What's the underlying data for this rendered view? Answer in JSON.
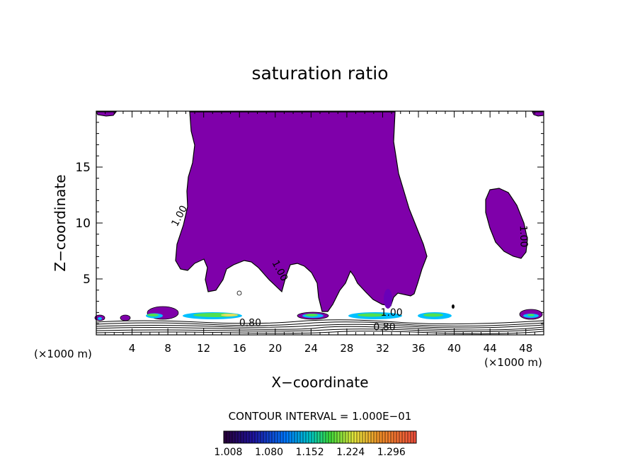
{
  "chart_data": {
    "type": "contour",
    "title": "saturation ratio",
    "xlabel": "X−coordinate",
    "ylabel": "Z−coordinate",
    "x_unit_left": "(×1000 m)",
    "x_unit_right": "(×1000 m)",
    "xlim": [
      0,
      50
    ],
    "ylim": [
      0,
      20
    ],
    "x_ticks": [
      "4",
      "8",
      "12",
      "16",
      "20",
      "24",
      "28",
      "32",
      "36",
      "40",
      "44",
      "48"
    ],
    "x_tick_values": [
      4,
      8,
      12,
      16,
      20,
      24,
      28,
      32,
      36,
      40,
      44,
      48
    ],
    "y_ticks": [
      "5",
      "10",
      "15"
    ],
    "y_tick_values": [
      5,
      10,
      15
    ],
    "contour_labels": [
      {
        "text": "1.00",
        "x": 9.6,
        "z": 10.5,
        "rot": -62
      },
      {
        "text": "1.00",
        "x": 20.2,
        "z": 5.6,
        "rot": 62
      },
      {
        "text": "1.00",
        "x": 47.4,
        "z": 8.8,
        "rot": 88
      },
      {
        "text": "1.00",
        "x": 33.0,
        "z": 1.7,
        "rot": 0
      },
      {
        "text": "0.80",
        "x": 17.2,
        "z": 0.8,
        "rot": 0
      },
      {
        "text": "0.80",
        "x": 32.2,
        "z": 0.4,
        "rot": 0
      }
    ],
    "contour_interval_text": "CONTOUR INTERVAL = 1.000E−01",
    "colorbar": {
      "labels": [
        "1.008",
        "1.080",
        "1.152",
        "1.224",
        "1.296"
      ],
      "values": [
        1.008,
        1.08,
        1.152,
        1.224,
        1.296
      ],
      "range": [
        1.0,
        1.34
      ]
    },
    "fill_color": "#7f00aa",
    "grid": false
  }
}
